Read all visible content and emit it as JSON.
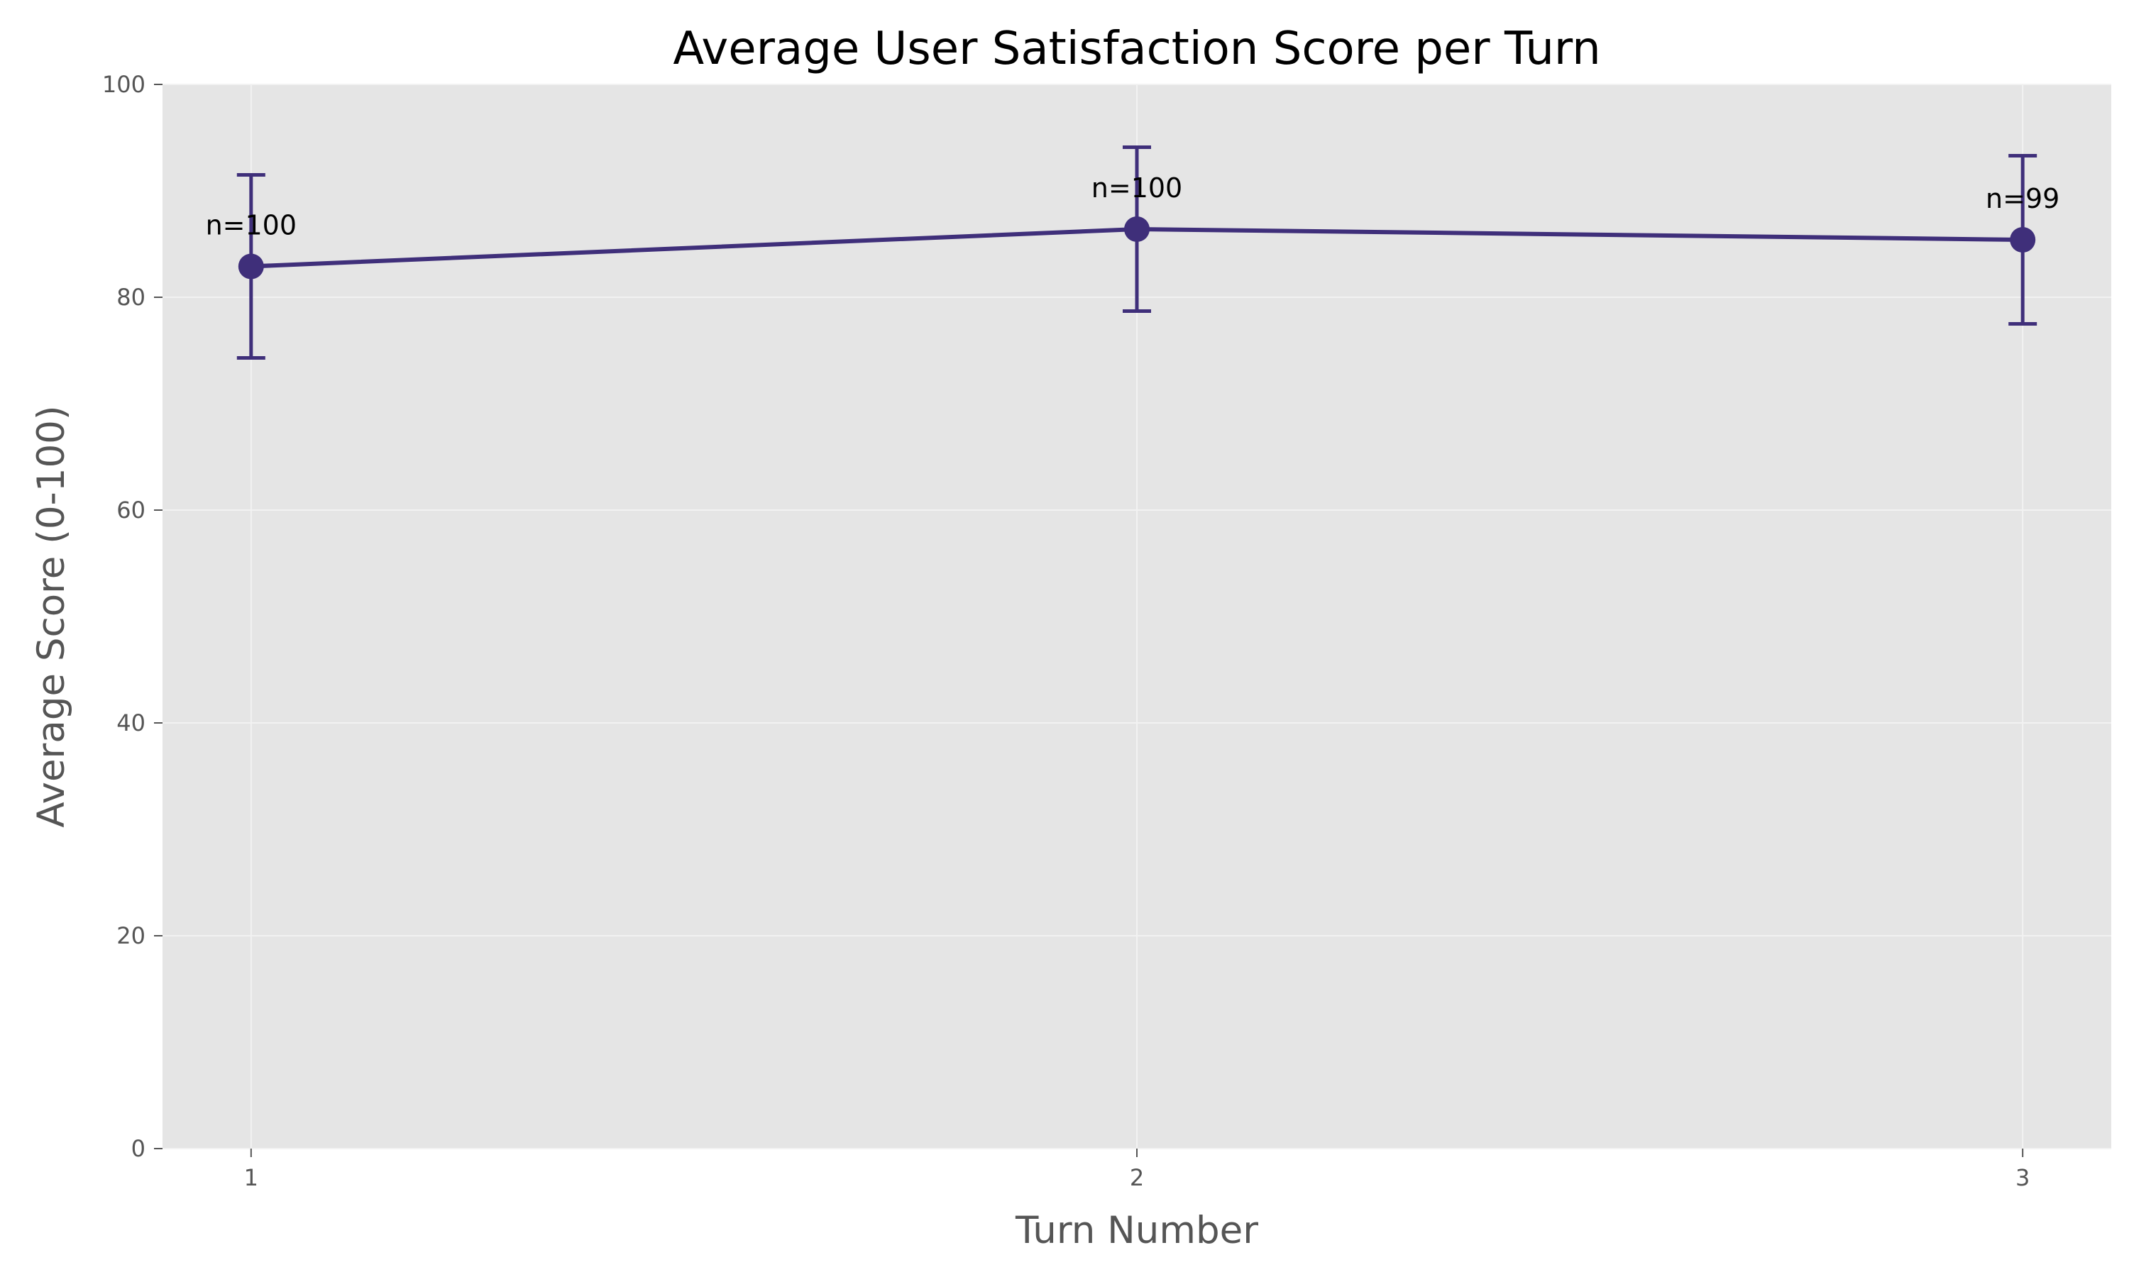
{
  "chart_data": {
    "type": "line",
    "title": "Average User Satisfaction Score per Turn",
    "xlabel": "Turn Number",
    "ylabel": "Average Score (0-100)",
    "x": [
      1,
      2,
      3
    ],
    "x_ticks": [
      "1",
      "2",
      "3"
    ],
    "y_ticks": [
      "0",
      "20",
      "40",
      "60",
      "80",
      "100"
    ],
    "xlim": [
      0.9,
      3.1
    ],
    "ylim": [
      0,
      100
    ],
    "grid": true,
    "legend": "none",
    "series": [
      {
        "values": [
          82.9,
          86.4,
          85.4
        ],
        "error": [
          8.6,
          7.7,
          7.9
        ],
        "labels": [
          "n=100",
          "n=100",
          "n=99"
        ],
        "color": "#3f2f7a"
      }
    ],
    "background_color": "#e5e5e5",
    "grid_color": "#f2f2f2"
  }
}
